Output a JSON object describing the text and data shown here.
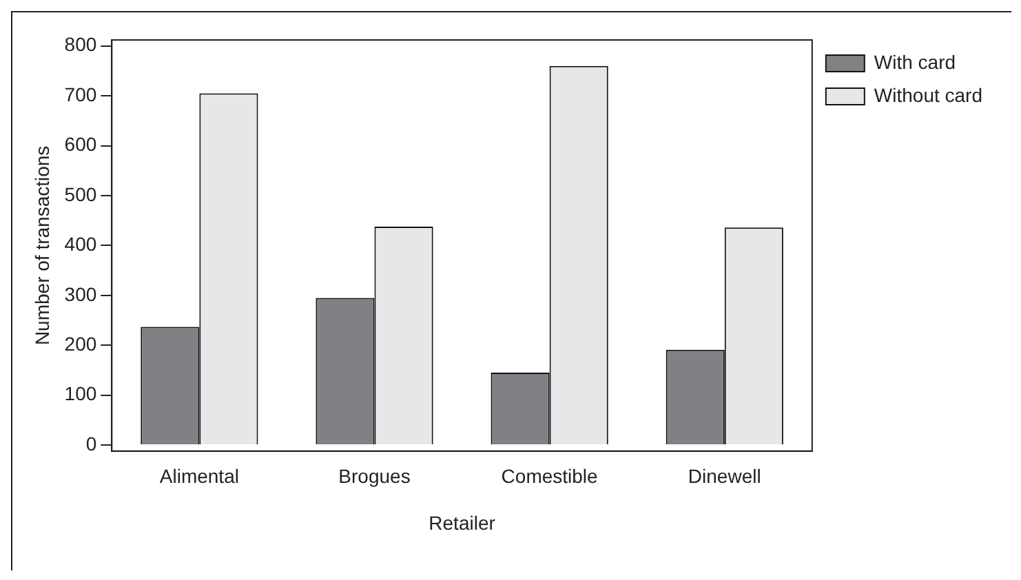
{
  "chart_data": {
    "type": "bar",
    "xlabel": "Retailer",
    "ylabel": "Number of transactions",
    "categories": [
      "Alimental",
      "Brogues",
      "Comestible",
      "Dinewell"
    ],
    "series": [
      {
        "name": "With card",
        "color": "#808185",
        "values": [
          237,
          295,
          145,
          191
        ]
      },
      {
        "name": "Without card",
        "color": "#e6e7e9",
        "values": [
          705,
          438,
          760,
          436
        ]
      }
    ],
    "ylim": [
      -12,
      812
    ],
    "yticks": [
      0,
      100,
      200,
      300,
      400,
      500,
      600,
      700,
      800
    ],
    "grid": false,
    "legend": "top right"
  }
}
